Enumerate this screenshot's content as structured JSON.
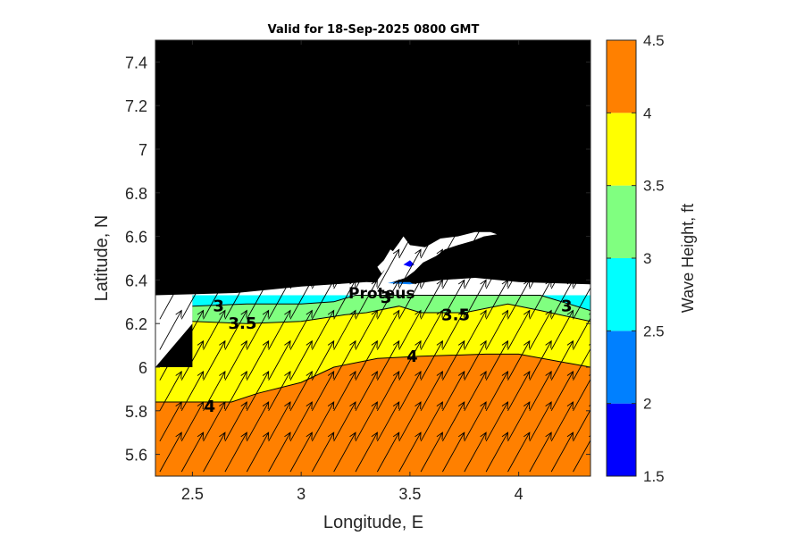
{
  "title": "Valid for 18-Sep-2025 0800 GMT",
  "colors": {
    "land": "#000000",
    "no_data": "#ffffff",
    "axis": "#262626",
    "bins": [
      "#0000ff",
      "#0080ff",
      "#00ffff",
      "#80ff80",
      "#ffff00",
      "#ff8000"
    ]
  },
  "chart_data": {
    "type": "heatmap",
    "title": "Valid for 18-Sep-2025 0800 GMT",
    "xlabel": "Longitude, E",
    "ylabel": "Latitude, N",
    "xlim": [
      2.33,
      4.33
    ],
    "ylim": [
      5.5,
      7.5
    ],
    "x_ticks": [
      2.5,
      3,
      3.5,
      4
    ],
    "x_tick_labels": [
      "2.5",
      "3",
      "3.5",
      "4"
    ],
    "y_ticks": [
      5.6,
      5.8,
      6,
      6.2,
      6.4,
      6.6,
      6.8,
      7,
      7.2,
      7.4
    ],
    "y_tick_labels": [
      "5.6",
      "5.8",
      "6",
      "6.2",
      "6.4",
      "6.6",
      "6.8",
      "7",
      "7.2",
      "7.4"
    ],
    "grid": false,
    "colorbar": {
      "label": "Wave Height, ft",
      "levels": [
        1.5,
        2,
        2.5,
        3,
        3.5,
        4,
        4.5
      ],
      "tick_labels": [
        "1.5",
        "2",
        "2.5",
        "3",
        "3.5",
        "4",
        "4.5"
      ],
      "colors": [
        "#0000ff",
        "#0080ff",
        "#00ffff",
        "#80ff80",
        "#ffff00",
        "#ff8000"
      ]
    },
    "contours": [
      {
        "level": 4,
        "points": [
          [
            2.33,
            5.84
          ],
          [
            2.68,
            5.84
          ],
          [
            2.8,
            5.88
          ],
          [
            3.0,
            5.93
          ],
          [
            3.15,
            6.0
          ],
          [
            3.35,
            6.04
          ],
          [
            3.55,
            6.05
          ],
          [
            3.85,
            6.06
          ],
          [
            4.0,
            6.06
          ],
          [
            4.33,
            6.0
          ]
        ]
      },
      {
        "level": 3.5,
        "points": [
          [
            2.5,
            6.21
          ],
          [
            2.75,
            6.2
          ],
          [
            3.0,
            6.21
          ],
          [
            3.2,
            6.24
          ],
          [
            3.3,
            6.25
          ],
          [
            3.45,
            6.28
          ],
          [
            3.55,
            6.25
          ],
          [
            3.75,
            6.25
          ],
          [
            3.95,
            6.29
          ],
          [
            4.1,
            6.26
          ],
          [
            4.33,
            6.21
          ]
        ]
      },
      {
        "level": 3,
        "points": [
          [
            2.5,
            6.28
          ],
          [
            2.75,
            6.29
          ],
          [
            3.0,
            6.29
          ],
          [
            3.15,
            6.3
          ],
          [
            3.25,
            6.33
          ],
          [
            3.9,
            6.33
          ],
          [
            4.1,
            6.33
          ],
          [
            4.33,
            6.26
          ]
        ]
      }
    ],
    "labels": [
      {
        "text": "4",
        "x": 2.58,
        "y": 5.82
      },
      {
        "text": "3.5",
        "x": 2.73,
        "y": 6.2
      },
      {
        "text": "3",
        "x": 2.62,
        "y": 6.28
      },
      {
        "text": "4",
        "x": 3.51,
        "y": 6.05
      },
      {
        "text": "3.5",
        "x": 3.71,
        "y": 6.24
      },
      {
        "text": "3",
        "x": 3.39,
        "y": 6.32
      },
      {
        "text": "3",
        "x": 4.22,
        "y": 6.28
      }
    ],
    "place_labels": [
      {
        "text": "Proteus",
        "x": 3.37,
        "y": 6.34
      }
    ],
    "wind_direction": "from south-west, toward north-east"
  }
}
